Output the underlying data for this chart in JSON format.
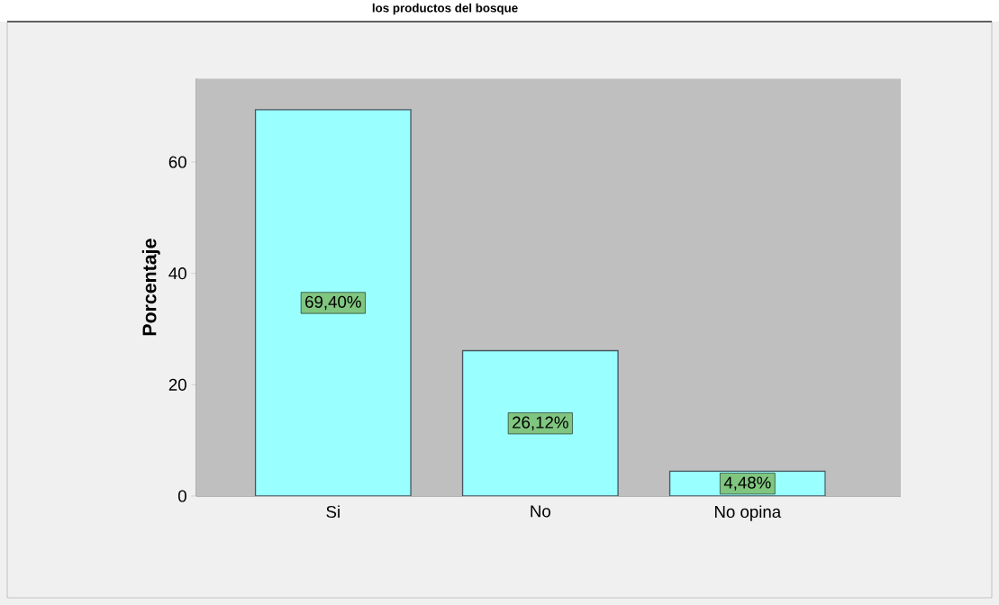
{
  "chart_data": {
    "type": "bar",
    "title": "los productos del bosque",
    "ylabel": "Porcentaje",
    "categories": [
      "Si",
      "No",
      "No opina"
    ],
    "values": [
      69.4,
      26.12,
      4.48
    ],
    "value_labels": [
      "69,40%",
      "26,12%",
      "4,48%"
    ],
    "color": "#99ffff",
    "ylim": [
      0,
      75
    ],
    "yticks": [
      0,
      20,
      40,
      60
    ],
    "grid": false
  }
}
